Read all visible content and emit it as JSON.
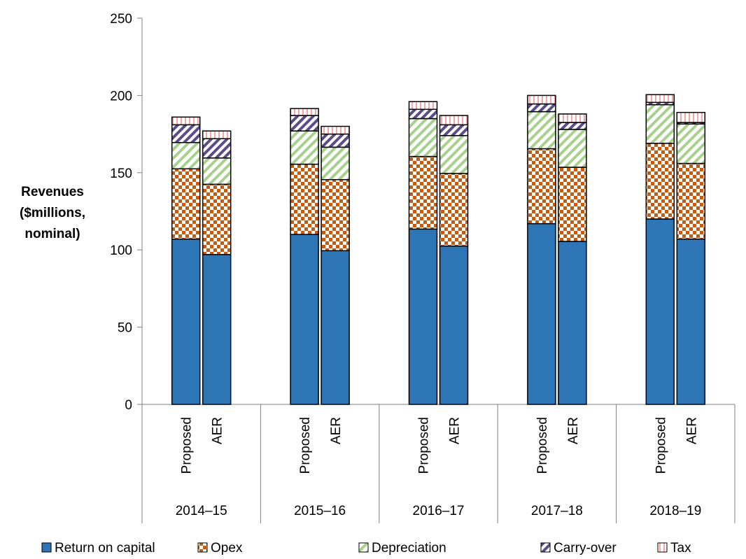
{
  "chart_data": {
    "type": "bar",
    "stacked": true,
    "groups": [
      "2014–15",
      "2015–16",
      "2016–17",
      "2017–18",
      "2018–19"
    ],
    "subcategories": [
      "Proposed",
      "AER"
    ],
    "ylabel": [
      "Revenues",
      "($millions,",
      "nominal)"
    ],
    "ylim": [
      0,
      250
    ],
    "yticks": [
      0,
      50,
      100,
      150,
      200,
      250
    ],
    "grid": false,
    "legend_position": "bottom",
    "series": [
      {
        "name": "Return on capital",
        "color": "#2e75b6",
        "pattern": "solid",
        "values": [
          [
            107,
            97
          ],
          [
            110,
            99.5
          ],
          [
            113.5,
            102.5
          ],
          [
            117,
            105.5
          ],
          [
            120,
            107
          ]
        ]
      },
      {
        "name": "Opex",
        "color": "#c55a11",
        "pattern": "checker",
        "values": [
          [
            45.5,
            45.5
          ],
          [
            45.5,
            46
          ],
          [
            47,
            47
          ],
          [
            48.5,
            48
          ],
          [
            49,
            49
          ]
        ]
      },
      {
        "name": "Depreciation",
        "color": "#70ad47",
        "pattern": "diagonal-light",
        "values": [
          [
            17,
            17
          ],
          [
            21.5,
            21
          ],
          [
            24.5,
            24.5
          ],
          [
            24,
            24.5
          ],
          [
            25,
            25.5
          ]
        ]
      },
      {
        "name": "Carry-over",
        "color": "#5a4d8a",
        "pattern": "diagonal-dark",
        "values": [
          [
            11.5,
            12.5
          ],
          [
            10,
            8.5
          ],
          [
            6,
            7
          ],
          [
            5,
            4.5
          ],
          [
            1.5,
            1
          ]
        ]
      },
      {
        "name": "Tax",
        "color": "#e06666",
        "pattern": "vertical-light",
        "values": [
          [
            5,
            5
          ],
          [
            4.5,
            5
          ],
          [
            5,
            6
          ],
          [
            5.5,
            5.5
          ],
          [
            5,
            6.5
          ]
        ]
      }
    ]
  }
}
